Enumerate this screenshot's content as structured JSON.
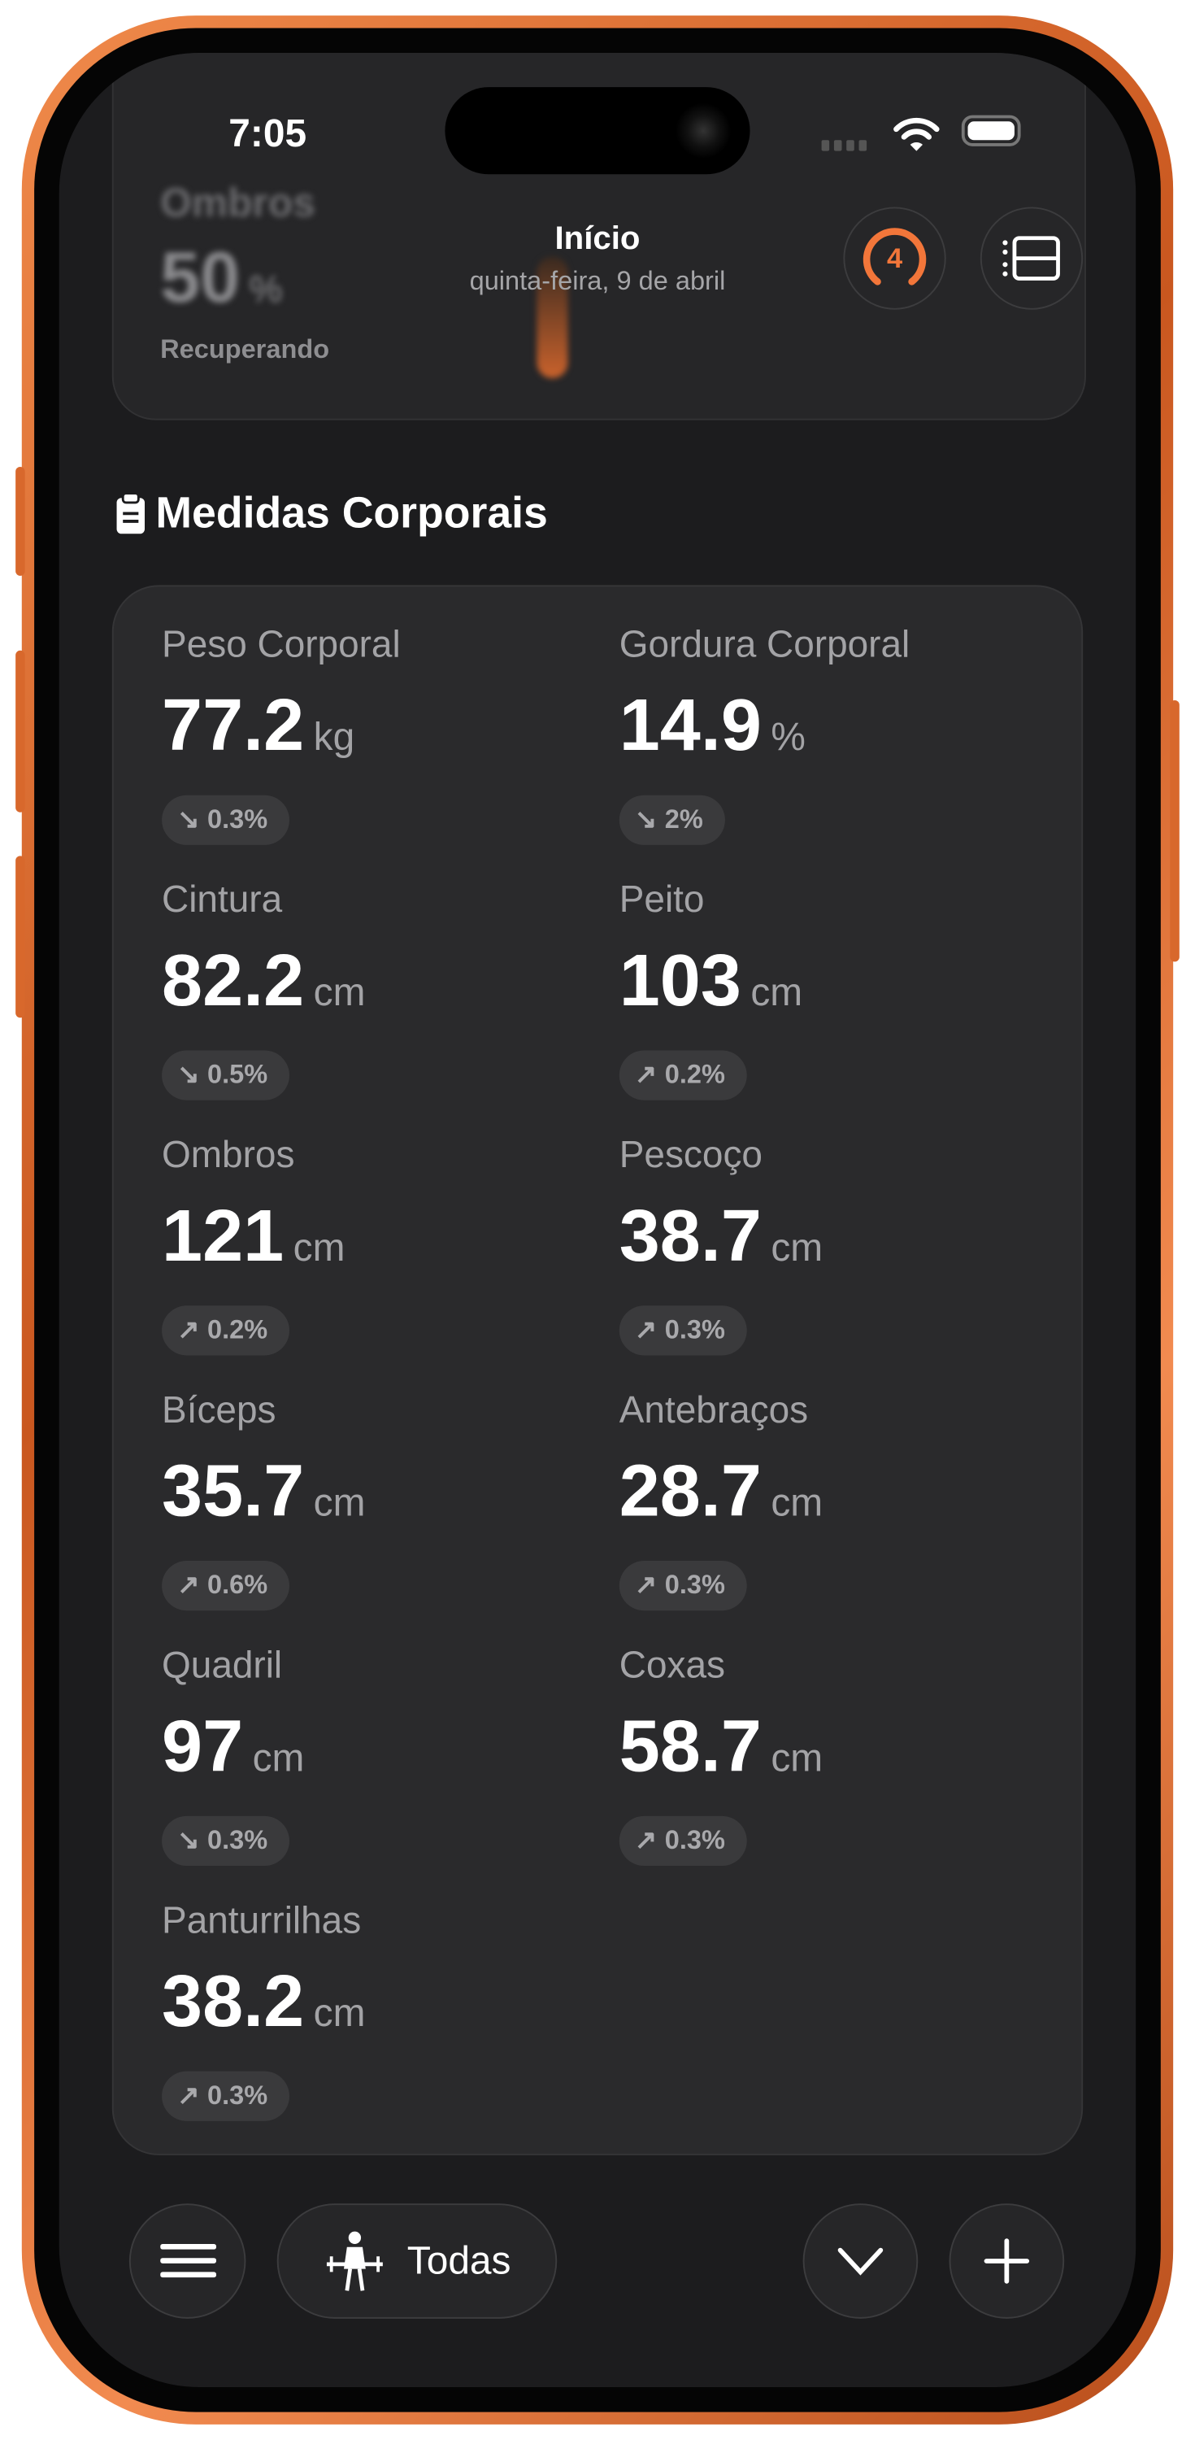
{
  "status_bar": {
    "time": "7:05",
    "icons": [
      "cellular-icon",
      "wifi-icon",
      "battery-icon"
    ]
  },
  "background_card": {
    "label": "Ombros",
    "value": "50",
    "unit": "%",
    "status": "Recuperando"
  },
  "header": {
    "title": "Início",
    "subtitle": "quinta-feira, 9 de abril",
    "badge_count": "4"
  },
  "section": {
    "title": "Medidas Corporais",
    "icon": "clipboard-icon"
  },
  "measurements": [
    {
      "label": "Peso Corporal",
      "value": "77.2",
      "unit": "kg",
      "change": "0.3%",
      "direction": "down"
    },
    {
      "label": "Gordura Corporal",
      "value": "14.9",
      "unit": "%",
      "change": "2%",
      "direction": "down"
    },
    {
      "label": "Cintura",
      "value": "82.2",
      "unit": "cm",
      "change": "0.5%",
      "direction": "down"
    },
    {
      "label": "Peito",
      "value": "103",
      "unit": "cm",
      "change": "0.2%",
      "direction": "up"
    },
    {
      "label": "Ombros",
      "value": "121",
      "unit": "cm",
      "change": "0.2%",
      "direction": "up"
    },
    {
      "label": "Pescoço",
      "value": "38.7",
      "unit": "cm",
      "change": "0.3%",
      "direction": "up"
    },
    {
      "label": "Bíceps",
      "value": "35.7",
      "unit": "cm",
      "change": "0.6%",
      "direction": "up"
    },
    {
      "label": "Antebraços",
      "value": "28.7",
      "unit": "cm",
      "change": "0.3%",
      "direction": "up"
    },
    {
      "label": "Quadril",
      "value": "97",
      "unit": "cm",
      "change": "0.3%",
      "direction": "down"
    },
    {
      "label": "Coxas",
      "value": "58.7",
      "unit": "cm",
      "change": "0.3%",
      "direction": "up"
    },
    {
      "label": "Panturrilhas",
      "value": "38.2",
      "unit": "cm",
      "change": "0.3%",
      "direction": "up"
    }
  ],
  "bottom_bar": {
    "filter_label": "Todas"
  },
  "colors": {
    "accent": "#f2763a",
    "frame": "#e07435",
    "background": "#1c1c1e",
    "card": "#2a2a2c"
  }
}
